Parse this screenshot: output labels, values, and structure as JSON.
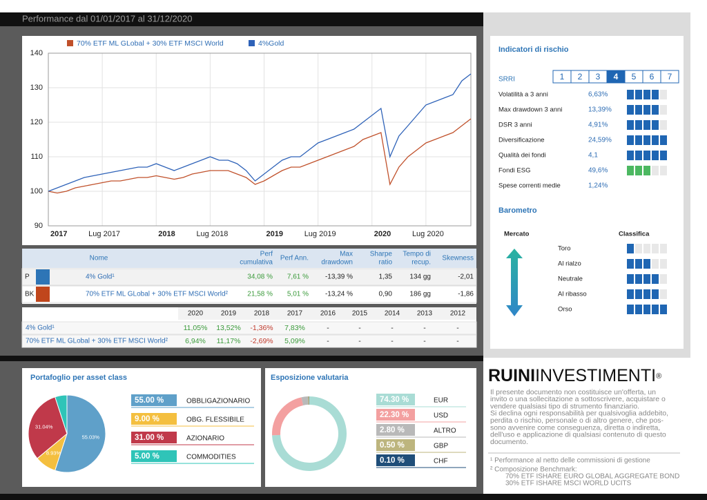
{
  "header": {
    "title": "Performance dal 01/01/2017 al 31/12/2020"
  },
  "chart_data": [
    {
      "type": "line",
      "x": [
        "2017-01",
        "2017-02",
        "2017-03",
        "2017-04",
        "2017-05",
        "2017-06",
        "2017-07",
        "2017-08",
        "2017-09",
        "2017-10",
        "2017-11",
        "2017-12",
        "2018-01",
        "2018-02",
        "2018-03",
        "2018-04",
        "2018-05",
        "2018-06",
        "2018-07",
        "2018-08",
        "2018-09",
        "2018-10",
        "2018-11",
        "2018-12",
        "2019-01",
        "2019-02",
        "2019-03",
        "2019-04",
        "2019-05",
        "2019-06",
        "2019-07",
        "2019-08",
        "2019-09",
        "2019-10",
        "2019-11",
        "2019-12",
        "2020-01",
        "2020-02",
        "2020-03",
        "2020-04",
        "2020-05",
        "2020-06",
        "2020-07",
        "2020-08",
        "2020-09",
        "2020-10",
        "2020-11",
        "2020-12"
      ],
      "series": [
        {
          "name": "70% ETF ML GLobal + 30% ETF MSCI World",
          "color": "#c0502a",
          "values": [
            100,
            99.5,
            100,
            101,
            101.5,
            102,
            102.5,
            103,
            103,
            103.5,
            104,
            104,
            104.5,
            104,
            103.5,
            104,
            105,
            105.5,
            106,
            106,
            106,
            105,
            104,
            102,
            103,
            104.5,
            106,
            107,
            107,
            108,
            109,
            110,
            111,
            112,
            113,
            115,
            116,
            117,
            102,
            107,
            110,
            112,
            114,
            115,
            116,
            117,
            119,
            121
          ]
        },
        {
          "name": "4%Gold",
          "color": "#2e62b8",
          "values": [
            100,
            101,
            102,
            103,
            104,
            104.5,
            105,
            105.5,
            106,
            106.5,
            107,
            107,
            108,
            107,
            106,
            107,
            108,
            109,
            110,
            109,
            109,
            108,
            106,
            103,
            105,
            107,
            109,
            110,
            110,
            112,
            114,
            115,
            116,
            117,
            118,
            120,
            122,
            124,
            110,
            116,
            119,
            122,
            125,
            126,
            127,
            128,
            132,
            134
          ]
        }
      ],
      "ylim": [
        90,
        140
      ],
      "yticks": [
        90,
        100,
        110,
        120,
        130,
        140
      ],
      "xticks": [
        {
          "value": "2017-01",
          "label": "2017"
        },
        {
          "value": "2017-07",
          "label": "Lug 2017"
        },
        {
          "value": "2018-01",
          "label": "2018"
        },
        {
          "value": "2018-07",
          "label": "Lug 2018"
        },
        {
          "value": "2019-01",
          "label": "2019"
        },
        {
          "value": "2019-07",
          "label": "Lug 2019"
        },
        {
          "value": "2020-01",
          "label": "2020"
        },
        {
          "value": "2020-07",
          "label": "Lug 2020"
        }
      ],
      "grid": true
    },
    {
      "type": "pie",
      "title": "Portafoglio per asset class",
      "values": [
        55.03,
        8.93,
        31.04,
        5
      ],
      "value_labels": [
        "55.03%",
        "8.93%",
        "31.04%",
        null
      ],
      "colors": [
        "#5fa0c9",
        "#f4bf3f",
        "#c0394a",
        "#2fc4b8"
      ],
      "legend": [
        {
          "label": "55.00 %",
          "value": 55,
          "name": "OBBLIGAZIONARIO"
        },
        {
          "label": "9.00 %",
          "value": 9,
          "name": "OBG. FLESSIBILE"
        },
        {
          "label": "31.00 %",
          "value": 31,
          "name": "AZIONARIO"
        },
        {
          "label": "5.00 %",
          "value": 5,
          "name": "COMMODITIES"
        }
      ]
    },
    {
      "type": "donut",
      "title": "Esposizione valutaria",
      "values": [
        74.3,
        22.3,
        2.8,
        0.5,
        0.1
      ],
      "colors": [
        "#a9dcd5",
        "#f3a0a0",
        "#b9b9b9",
        "#bdb57e",
        "#1f4e79"
      ],
      "legend": [
        {
          "label": "74.30 %",
          "value": 74.3,
          "name": "EUR"
        },
        {
          "label": "22.30 %",
          "value": 22.3,
          "name": "USD"
        },
        {
          "label": "2.80 %",
          "value": 2.8,
          "name": "ALTRO"
        },
        {
          "label": "0.50 %",
          "value": 0.5,
          "name": "GBP"
        },
        {
          "label": "0.10 %",
          "value": 0.1,
          "name": "CHF"
        }
      ]
    }
  ],
  "performance_table": {
    "columns": [
      [
        "Nome"
      ],
      [
        "Perf",
        "cumulativa"
      ],
      [
        "Perf Ann."
      ],
      [
        "Max",
        "drawdown"
      ],
      [
        "Sharpe",
        "ratio"
      ],
      [
        "Tempo di",
        "recup."
      ],
      [
        "Skewness"
      ]
    ],
    "rows": [
      {
        "code": "P",
        "color": "#2e75b6",
        "name": "4% Gold¹",
        "cells": [
          "34,08 %",
          "7,61 %",
          "-13,39 %",
          "1,35",
          "134 gg",
          "-2,01"
        ]
      },
      {
        "code": "BK",
        "color": "#c0461c",
        "name": "70% ETF ML GLobal + 30% ETF MSCI World²",
        "cells": [
          "21,58 %",
          "5,01 %",
          "-13,24 %",
          "0,90",
          "186 gg",
          "-1,86"
        ]
      }
    ]
  },
  "annual_table": {
    "years": [
      "2020",
      "2019",
      "2018",
      "2017",
      "2016",
      "2015",
      "2014",
      "2013",
      "2012"
    ],
    "rows": [
      {
        "name": "4% Gold¹",
        "cells": [
          "11,05%",
          "13,52%",
          "-1,36%",
          "7,83%",
          "-",
          "-",
          "-",
          "-",
          "-"
        ]
      },
      {
        "name": "70% ETF ML GLobal + 30% ETF MSCI World²",
        "cells": [
          "6,94%",
          "11,17%",
          "-2,69%",
          "5,09%",
          "-",
          "-",
          "-",
          "-",
          "-"
        ]
      }
    ]
  },
  "risk": {
    "title": "Indicatori di rischio",
    "srri": {
      "label": "SRRI",
      "levels": [
        1,
        2,
        3,
        4,
        5,
        6,
        7
      ],
      "selected": 4
    },
    "indicators": [
      {
        "label": "Volatilità a 3 anni",
        "value": "6,63%",
        "score": 4
      },
      {
        "label": "Max drawdown 3 anni",
        "value": "13,39%",
        "score": 4
      },
      {
        "label": "DSR 3 anni",
        "value": "4,91%",
        "score": 4
      },
      {
        "label": "Diversificazione",
        "value": "24,59%",
        "score": 5
      },
      {
        "label": "Qualità dei fondi",
        "value": "4,1",
        "score": 5
      },
      {
        "label": "Fondi ESG",
        "value": "49,6%",
        "score": 3,
        "color": "#4cb861"
      },
      {
        "label": "Spese correnti medie",
        "value": "1,24%"
      }
    ]
  },
  "barometer": {
    "title": "Barometro",
    "left_label": "Mercato",
    "right_label": "Classifica",
    "rows": [
      {
        "label": "Toro",
        "score": 1
      },
      {
        "label": "Al rialzo",
        "score": 3
      },
      {
        "label": "Neutrale",
        "score": 4
      },
      {
        "label": "Al ribasso",
        "score": 4
      },
      {
        "label": "Orso",
        "score": 5
      }
    ]
  },
  "brand": {
    "bold": "RUINI",
    "rest": "INVESTIMENTI",
    "mark": "®"
  },
  "disclaimer": [
    "Il presente documento non costituisce un'offerta, un",
    "invito o una sollecitazione a sottoscrivere, acquistare o",
    "vendere qualsiasi tipo di strumento finanziario.",
    "Si declina ogni responsabilità per qualsivoglia addebito,",
    "perdita o rischio, personale o di altro genere, che pos-",
    "sono avvenire come conseguenza, diretta o indiretta,",
    "dell'uso e applicazione di qualsiasi contenuto di questo",
    "documento."
  ],
  "notes": [
    "¹ Performance al netto delle commissioni  di gestione",
    "² Composizione Benchmark:",
    "70% ETF ISHARE EURO GLOBAL AGGREGATE BOND",
    "30% ETF ISHARE MSCI WORLD UCITS"
  ]
}
